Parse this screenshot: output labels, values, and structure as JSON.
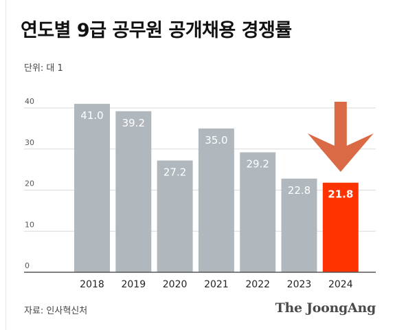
{
  "header": {
    "title": "연도별 9급 공무원 공개채용 경쟁률",
    "unit_label": "단위: 대 1"
  },
  "footer": {
    "source": "자료: 인사혁신처",
    "brand": "The JoongAng"
  },
  "colors": {
    "bar": "#b0b8bd",
    "highlight_bar": "#ff3300",
    "arrow": "#d96a45",
    "grid": "#d9d9d9",
    "axis": "#555555"
  },
  "chart_data": {
    "type": "bar",
    "title": "연도별 9급 공무원 공개채용 경쟁률",
    "unit": "단위: 대 1",
    "xlabel": "",
    "ylabel": "",
    "categories": [
      "2018",
      "2019",
      "2020",
      "2021",
      "2022",
      "2023",
      "2024"
    ],
    "values": [
      41.0,
      39.2,
      27.2,
      35.0,
      29.2,
      22.8,
      21.8
    ],
    "value_labels": [
      "41.0",
      "39.2",
      "27.2",
      "35.0",
      "29.2",
      "22.8",
      "21.8"
    ],
    "highlight_category": "2024",
    "y_ticks": [
      0,
      10,
      20,
      30,
      40
    ],
    "ylim": [
      0,
      40
    ],
    "grid": true,
    "legend": "none"
  }
}
